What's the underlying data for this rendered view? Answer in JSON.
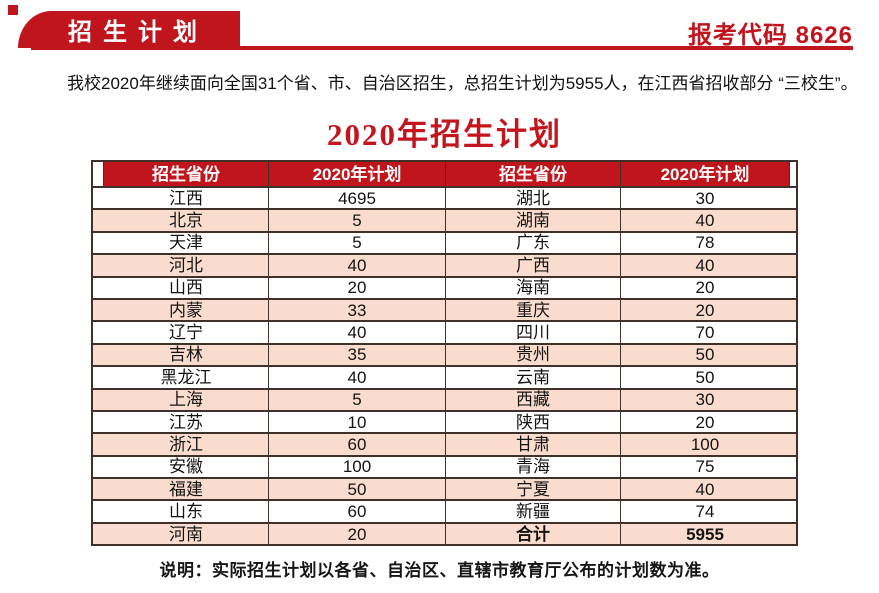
{
  "header": {
    "banner_label": "招生计划",
    "exam_code_label": "报考代码 8626"
  },
  "intro": {
    "text": "我校2020年继续面向全国31个省、市、自治区招生，总招生计划为5955人，在江西省招收部分 “三校生”。"
  },
  "title": "2020年招生计划",
  "table": {
    "columns": [
      "招生省份",
      "2020年计划",
      "招生省份",
      "2020年计划"
    ],
    "rows": [
      [
        "江西",
        "4695",
        "湖北",
        "30"
      ],
      [
        "北京",
        "5",
        "湖南",
        "40"
      ],
      [
        "天津",
        "5",
        "广东",
        "78"
      ],
      [
        "河北",
        "40",
        "广西",
        "40"
      ],
      [
        "山西",
        "20",
        "海南",
        "20"
      ],
      [
        "内蒙",
        "33",
        "重庆",
        "20"
      ],
      [
        "辽宁",
        "40",
        "四川",
        "70"
      ],
      [
        "吉林",
        "35",
        "贵州",
        "50"
      ],
      [
        "黑龙江",
        "40",
        "云南",
        "50"
      ],
      [
        "上海",
        "5",
        "西藏",
        "30"
      ],
      [
        "江苏",
        "10",
        "陕西",
        "20"
      ],
      [
        "浙江",
        "60",
        "甘肃",
        "100"
      ],
      [
        "安徽",
        "100",
        "青海",
        "75"
      ],
      [
        "福建",
        "50",
        "宁夏",
        "40"
      ],
      [
        "山东",
        "60",
        "新疆",
        "74"
      ],
      [
        "河南",
        "20",
        "合计",
        "5955"
      ]
    ],
    "total_label": "合计",
    "total_value": "5955"
  },
  "note": "说明：实际招生计划以各省、自治区、直辖市教育厅公布的计划数为准。",
  "colors": {
    "accent_red": "#c0151c",
    "row_pink": "#f9dccd",
    "border_dark": "#40302a"
  }
}
